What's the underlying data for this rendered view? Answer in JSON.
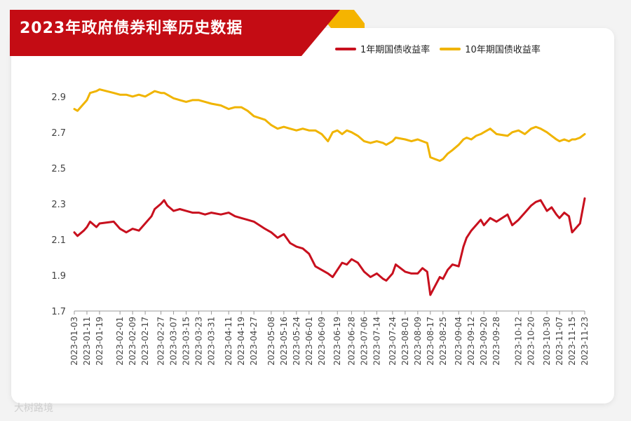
{
  "header": {
    "title": "2023年政府债券利率历史数据"
  },
  "watermark": {
    "text": "大树路境"
  },
  "colors": {
    "banner_red": "#c40c14",
    "banner_accent": "#f5b400",
    "series_1y": "#c8101e",
    "series_10y": "#f0b400"
  },
  "chart_data": {
    "type": "line",
    "title": "2023年政府债券利率历史数据",
    "xlabel": "",
    "ylabel": "",
    "ylim": [
      1.7,
      2.95
    ],
    "yticks": [
      1.7,
      1.9,
      2.1,
      2.3,
      2.5,
      2.7,
      2.9
    ],
    "ytick_labels": [
      "1.7",
      "1.9",
      "2.1",
      "2.3",
      "2.5",
      "2.7",
      "2.9"
    ],
    "xlim": [
      "2023-01-03",
      "2023-11-23"
    ],
    "xtick_labels": [
      "2023-01-03",
      "2023-01-11",
      "2023-01-19",
      "2023-02-01",
      "2023-02-09",
      "2023-02-17",
      "2023-02-27",
      "2023-03-07",
      "2023-03-15",
      "2023-03-23",
      "2023-03-31",
      "2023-04-11",
      "2023-04-19",
      "2023-04-27",
      "2023-05-08",
      "2023-05-16",
      "2023-05-24",
      "2023-06-01",
      "2023-06-09",
      "2023-06-19",
      "2023-06-28",
      "2023-07-06",
      "2023-07-14",
      "2023-07-24",
      "2023-08-01",
      "2023-08-09",
      "2023-08-17",
      "2023-08-25",
      "2023-09-04",
      "2023-09-12",
      "2023-09-20",
      "2023-09-28",
      "2023-10-12",
      "2023-10-20",
      "2023-10-30",
      "2023-11-07",
      "2023-11-15",
      "2023-11-23"
    ],
    "grid": false,
    "legend_position": "top-right",
    "series": [
      {
        "name": "1年期国债收益率",
        "color": "#c8101e",
        "points": [
          [
            "2023-01-03",
            2.14
          ],
          [
            "2023-01-05",
            2.12
          ],
          [
            "2023-01-09",
            2.15
          ],
          [
            "2023-01-11",
            2.17
          ],
          [
            "2023-01-13",
            2.2
          ],
          [
            "2023-01-17",
            2.17
          ],
          [
            "2023-01-19",
            2.19
          ],
          [
            "2023-01-28",
            2.2
          ],
          [
            "2023-02-01",
            2.16
          ],
          [
            "2023-02-05",
            2.14
          ],
          [
            "2023-02-09",
            2.16
          ],
          [
            "2023-02-13",
            2.15
          ],
          [
            "2023-02-17",
            2.19
          ],
          [
            "2023-02-21",
            2.23
          ],
          [
            "2023-02-23",
            2.27
          ],
          [
            "2023-02-27",
            2.3
          ],
          [
            "2023-03-01",
            2.32
          ],
          [
            "2023-03-03",
            2.29
          ],
          [
            "2023-03-07",
            2.26
          ],
          [
            "2023-03-11",
            2.27
          ],
          [
            "2023-03-15",
            2.26
          ],
          [
            "2023-03-19",
            2.25
          ],
          [
            "2023-03-23",
            2.25
          ],
          [
            "2023-03-27",
            2.24
          ],
          [
            "2023-03-31",
            2.25
          ],
          [
            "2023-04-06",
            2.24
          ],
          [
            "2023-04-11",
            2.25
          ],
          [
            "2023-04-15",
            2.23
          ],
          [
            "2023-04-19",
            2.22
          ],
          [
            "2023-04-23",
            2.21
          ],
          [
            "2023-04-27",
            2.2
          ],
          [
            "2023-05-04",
            2.16
          ],
          [
            "2023-05-08",
            2.14
          ],
          [
            "2023-05-12",
            2.11
          ],
          [
            "2023-05-16",
            2.13
          ],
          [
            "2023-05-20",
            2.08
          ],
          [
            "2023-05-24",
            2.06
          ],
          [
            "2023-05-28",
            2.05
          ],
          [
            "2023-06-01",
            2.02
          ],
          [
            "2023-06-05",
            1.95
          ],
          [
            "2023-06-09",
            1.93
          ],
          [
            "2023-06-13",
            1.91
          ],
          [
            "2023-06-16",
            1.89
          ],
          [
            "2023-06-19",
            1.93
          ],
          [
            "2023-06-22",
            1.97
          ],
          [
            "2023-06-25",
            1.96
          ],
          [
            "2023-06-28",
            1.99
          ],
          [
            "2023-07-02",
            1.97
          ],
          [
            "2023-07-06",
            1.92
          ],
          [
            "2023-07-10",
            1.89
          ],
          [
            "2023-07-14",
            1.91
          ],
          [
            "2023-07-18",
            1.88
          ],
          [
            "2023-07-20",
            1.87
          ],
          [
            "2023-07-24",
            1.91
          ],
          [
            "2023-07-26",
            1.96
          ],
          [
            "2023-08-01",
            1.92
          ],
          [
            "2023-08-05",
            1.91
          ],
          [
            "2023-08-09",
            1.91
          ],
          [
            "2023-08-12",
            1.94
          ],
          [
            "2023-08-15",
            1.92
          ],
          [
            "2023-08-17",
            1.79
          ],
          [
            "2023-08-20",
            1.84
          ],
          [
            "2023-08-23",
            1.89
          ],
          [
            "2023-08-25",
            1.88
          ],
          [
            "2023-08-28",
            1.93
          ],
          [
            "2023-08-31",
            1.96
          ],
          [
            "2023-09-04",
            1.95
          ],
          [
            "2023-09-07",
            2.06
          ],
          [
            "2023-09-09",
            2.11
          ],
          [
            "2023-09-12",
            2.15
          ],
          [
            "2023-09-15",
            2.18
          ],
          [
            "2023-09-18",
            2.21
          ],
          [
            "2023-09-20",
            2.18
          ],
          [
            "2023-09-24",
            2.22
          ],
          [
            "2023-09-28",
            2.2
          ],
          [
            "2023-10-05",
            2.24
          ],
          [
            "2023-10-08",
            2.18
          ],
          [
            "2023-10-12",
            2.21
          ],
          [
            "2023-10-16",
            2.25
          ],
          [
            "2023-10-20",
            2.29
          ],
          [
            "2023-10-23",
            2.31
          ],
          [
            "2023-10-26",
            2.32
          ],
          [
            "2023-10-30",
            2.26
          ],
          [
            "2023-11-02",
            2.28
          ],
          [
            "2023-11-05",
            2.24
          ],
          [
            "2023-11-07",
            2.22
          ],
          [
            "2023-11-10",
            2.25
          ],
          [
            "2023-11-13",
            2.23
          ],
          [
            "2023-11-15",
            2.14
          ],
          [
            "2023-11-17",
            2.16
          ],
          [
            "2023-11-20",
            2.19
          ],
          [
            "2023-11-23",
            2.33
          ]
        ]
      },
      {
        "name": "10年期国债收益率",
        "color": "#f0b400",
        "points": [
          [
            "2023-01-03",
            2.83
          ],
          [
            "2023-01-05",
            2.82
          ],
          [
            "2023-01-09",
            2.86
          ],
          [
            "2023-01-11",
            2.88
          ],
          [
            "2023-01-13",
            2.92
          ],
          [
            "2023-01-17",
            2.93
          ],
          [
            "2023-01-19",
            2.94
          ],
          [
            "2023-01-28",
            2.92
          ],
          [
            "2023-02-01",
            2.91
          ],
          [
            "2023-02-05",
            2.91
          ],
          [
            "2023-02-09",
            2.9
          ],
          [
            "2023-02-13",
            2.91
          ],
          [
            "2023-02-17",
            2.9
          ],
          [
            "2023-02-21",
            2.92
          ],
          [
            "2023-02-23",
            2.93
          ],
          [
            "2023-02-27",
            2.92
          ],
          [
            "2023-03-01",
            2.92
          ],
          [
            "2023-03-03",
            2.91
          ],
          [
            "2023-03-07",
            2.89
          ],
          [
            "2023-03-11",
            2.88
          ],
          [
            "2023-03-15",
            2.87
          ],
          [
            "2023-03-19",
            2.88
          ],
          [
            "2023-03-23",
            2.88
          ],
          [
            "2023-03-27",
            2.87
          ],
          [
            "2023-03-31",
            2.86
          ],
          [
            "2023-04-06",
            2.85
          ],
          [
            "2023-04-11",
            2.83
          ],
          [
            "2023-04-15",
            2.84
          ],
          [
            "2023-04-19",
            2.84
          ],
          [
            "2023-04-23",
            2.82
          ],
          [
            "2023-04-27",
            2.79
          ],
          [
            "2023-05-04",
            2.77
          ],
          [
            "2023-05-08",
            2.74
          ],
          [
            "2023-05-12",
            2.72
          ],
          [
            "2023-05-16",
            2.73
          ],
          [
            "2023-05-20",
            2.72
          ],
          [
            "2023-05-24",
            2.71
          ],
          [
            "2023-05-28",
            2.72
          ],
          [
            "2023-06-01",
            2.71
          ],
          [
            "2023-06-05",
            2.71
          ],
          [
            "2023-06-09",
            2.69
          ],
          [
            "2023-06-13",
            2.65
          ],
          [
            "2023-06-16",
            2.7
          ],
          [
            "2023-06-19",
            2.71
          ],
          [
            "2023-06-22",
            2.69
          ],
          [
            "2023-06-25",
            2.71
          ],
          [
            "2023-06-28",
            2.7
          ],
          [
            "2023-07-02",
            2.68
          ],
          [
            "2023-07-06",
            2.65
          ],
          [
            "2023-07-10",
            2.64
          ],
          [
            "2023-07-14",
            2.65
          ],
          [
            "2023-07-18",
            2.64
          ],
          [
            "2023-07-20",
            2.63
          ],
          [
            "2023-07-24",
            2.65
          ],
          [
            "2023-07-26",
            2.67
          ],
          [
            "2023-08-01",
            2.66
          ],
          [
            "2023-08-05",
            2.65
          ],
          [
            "2023-08-09",
            2.66
          ],
          [
            "2023-08-12",
            2.65
          ],
          [
            "2023-08-15",
            2.64
          ],
          [
            "2023-08-17",
            2.56
          ],
          [
            "2023-08-20",
            2.55
          ],
          [
            "2023-08-23",
            2.54
          ],
          [
            "2023-08-25",
            2.55
          ],
          [
            "2023-08-28",
            2.58
          ],
          [
            "2023-08-31",
            2.6
          ],
          [
            "2023-09-04",
            2.63
          ],
          [
            "2023-09-07",
            2.66
          ],
          [
            "2023-09-09",
            2.67
          ],
          [
            "2023-09-12",
            2.66
          ],
          [
            "2023-09-15",
            2.68
          ],
          [
            "2023-09-18",
            2.69
          ],
          [
            "2023-09-20",
            2.7
          ],
          [
            "2023-09-24",
            2.72
          ],
          [
            "2023-09-28",
            2.69
          ],
          [
            "2023-10-05",
            2.68
          ],
          [
            "2023-10-08",
            2.7
          ],
          [
            "2023-10-12",
            2.71
          ],
          [
            "2023-10-16",
            2.69
          ],
          [
            "2023-10-20",
            2.72
          ],
          [
            "2023-10-23",
            2.73
          ],
          [
            "2023-10-26",
            2.72
          ],
          [
            "2023-10-30",
            2.7
          ],
          [
            "2023-11-02",
            2.68
          ],
          [
            "2023-11-05",
            2.66
          ],
          [
            "2023-11-07",
            2.65
          ],
          [
            "2023-11-10",
            2.66
          ],
          [
            "2023-11-13",
            2.65
          ],
          [
            "2023-11-15",
            2.66
          ],
          [
            "2023-11-17",
            2.66
          ],
          [
            "2023-11-20",
            2.67
          ],
          [
            "2023-11-23",
            2.69
          ]
        ]
      }
    ]
  }
}
